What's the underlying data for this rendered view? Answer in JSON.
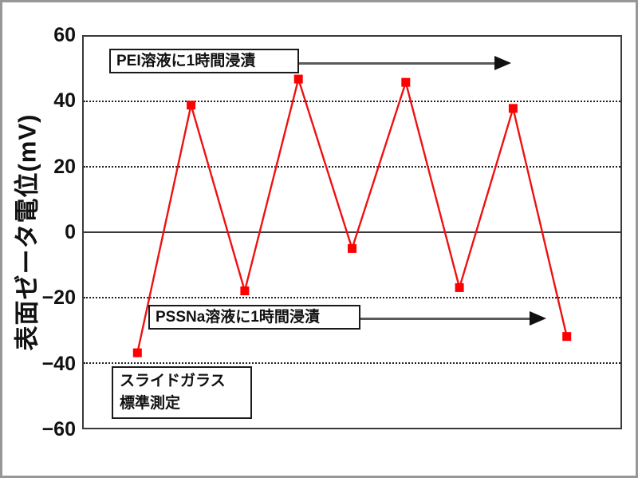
{
  "figure": {
    "ylabel": "表面ゼータ電位(mV)"
  },
  "chart_data": {
    "type": "line",
    "title": "",
    "xlabel": "",
    "ylabel": "表面ゼータ電位(mV)",
    "x": [
      1,
      2,
      3,
      4,
      5,
      6,
      7,
      8,
      9
    ],
    "values": [
      -37,
      39,
      -18,
      47,
      -5,
      46,
      -17,
      38,
      -32
    ],
    "ylim": [
      -60,
      60
    ],
    "yticks": [
      60,
      40,
      20,
      0,
      -20,
      -40,
      -60
    ],
    "ytick_labels": [
      "60",
      "40",
      "20",
      "0",
      "−20",
      "−40",
      "−60"
    ],
    "grid": "horizontal dotted at ±20 and ±40, solid line at 0, frame at ±60",
    "legend": "none",
    "line_color": "#ee1111",
    "marker": "square",
    "marker_color": "#ff0000",
    "marker_size": 11,
    "annotations": [
      {
        "text": "PEI溶液に1時間浸漬",
        "arrow": "right"
      },
      {
        "text": "PSSNa溶液に1時間浸漬",
        "arrow": "right"
      },
      {
        "lines": [
          "スライドガラス",
          "標準測定"
        ],
        "arrow": "none"
      }
    ]
  }
}
